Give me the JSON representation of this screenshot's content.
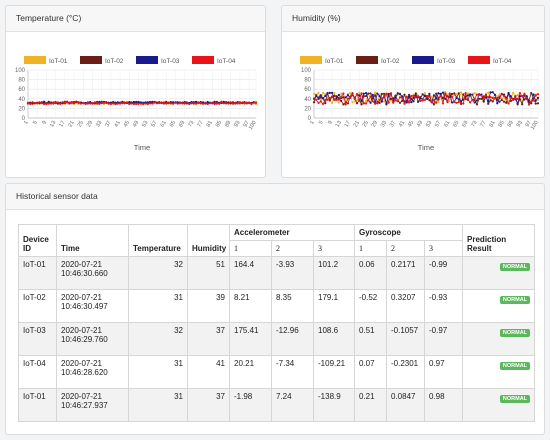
{
  "temperature_card": {
    "title": "Temperature (°C)"
  },
  "humidity_card": {
    "title": "Humidity (%)"
  },
  "history_card": {
    "title": "Historical sensor data",
    "headers": {
      "device_id": "Device ID",
      "time": "Time",
      "temperature": "Temperature",
      "humidity": "Humidity",
      "accelerometer": "Accelerometer",
      "gyroscope": "Gyroscope",
      "prediction": "Prediction Result",
      "axis1": "1",
      "axis2": "2",
      "axis3": "3"
    },
    "rows": [
      {
        "device": "IoT-01",
        "date": "2020-07-21",
        "clock": "10:46:30.660",
        "temperature": "32",
        "humidity": "51",
        "acc1": "164.4",
        "acc2": "-3.93",
        "acc3": "101.2",
        "gyr1": "0.06",
        "gyr2": "0.2171",
        "gyr3": "-0.99",
        "result": "NORMAL"
      },
      {
        "device": "IoT-02",
        "date": "2020-07-21",
        "clock": "10:46:30.497",
        "temperature": "31",
        "humidity": "39",
        "acc1": "8.21",
        "acc2": "8.35",
        "acc3": "179.1",
        "gyr1": "-0.52",
        "gyr2": "0.3207",
        "gyr3": "-0.93",
        "result": "NORMAL"
      },
      {
        "device": "IoT-03",
        "date": "2020-07-21",
        "clock": "10:46:29.760",
        "temperature": "32",
        "humidity": "37",
        "acc1": "175.41",
        "acc2": "-12.96",
        "acc3": "108.6",
        "gyr1": "0.51",
        "gyr2": "-0.1057",
        "gyr3": "-0.97",
        "result": "NORMAL"
      },
      {
        "device": "IoT-04",
        "date": "2020-07-21",
        "clock": "10:46:28.620",
        "temperature": "31",
        "humidity": "41",
        "acc1": "20.21",
        "acc2": "-7.34",
        "acc3": "-109.21",
        "gyr1": "0.07",
        "gyr2": "-0.2301",
        "gyr3": "0.97",
        "result": "NORMAL"
      },
      {
        "device": "IoT-01",
        "date": "2020-07-21",
        "clock": "10:46:27.937",
        "temperature": "31",
        "humidity": "37",
        "acc1": "-1.98",
        "acc2": "7.24",
        "acc3": "-138.9",
        "gyr1": "0.21",
        "gyr2": "0.0847",
        "gyr3": "0.98",
        "result": "NORMAL"
      }
    ]
  },
  "chart_data": [
    {
      "type": "line",
      "title": "",
      "xlabel": "Time",
      "ylabel": "",
      "ylim": [
        0,
        100
      ],
      "yticks": [
        0,
        20,
        40,
        60,
        80,
        100
      ],
      "xticks": [
        1,
        5,
        9,
        13,
        17,
        21,
        25,
        29,
        33,
        37,
        41,
        45,
        49,
        53,
        57,
        61,
        65,
        69,
        73,
        77,
        81,
        85,
        89,
        93,
        97,
        100
      ],
      "xrange": [
        1,
        100
      ],
      "grid": true,
      "legend": "top-left",
      "series": [
        {
          "name": "IoT-01",
          "color": "#f0b323",
          "base": 31,
          "amp": 2
        },
        {
          "name": "IoT-02",
          "color": "#6b1f14",
          "base": 32,
          "amp": 2
        },
        {
          "name": "IoT-03",
          "color": "#1a1a8c",
          "base": 32,
          "amp": 2
        },
        {
          "name": "IoT-04",
          "color": "#e8141a",
          "base": 31,
          "amp": 2
        }
      ]
    },
    {
      "type": "line",
      "title": "",
      "xlabel": "Time",
      "ylabel": "",
      "ylim": [
        0,
        100
      ],
      "yticks": [
        0,
        20,
        40,
        60,
        80,
        100
      ],
      "xticks": [
        1,
        5,
        9,
        13,
        17,
        21,
        25,
        29,
        33,
        37,
        41,
        45,
        49,
        53,
        57,
        61,
        65,
        69,
        73,
        77,
        81,
        85,
        89,
        93,
        97,
        100
      ],
      "xrange": [
        1,
        100
      ],
      "grid": true,
      "legend": "top-left",
      "series": [
        {
          "name": "IoT-01",
          "color": "#f0b323",
          "base": 42,
          "amp": 12
        },
        {
          "name": "IoT-02",
          "color": "#6b1f14",
          "base": 40,
          "amp": 12
        },
        {
          "name": "IoT-03",
          "color": "#1a1a8c",
          "base": 42,
          "amp": 12
        },
        {
          "name": "IoT-04",
          "color": "#e8141a",
          "base": 40,
          "amp": 12
        }
      ]
    }
  ]
}
